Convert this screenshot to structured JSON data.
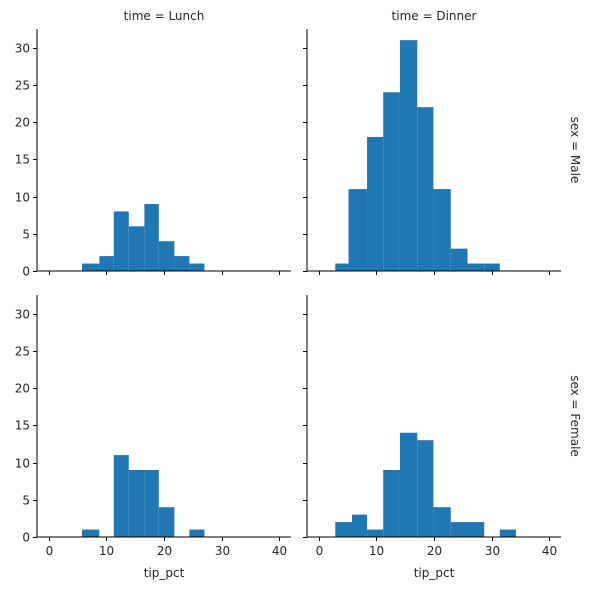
{
  "chart_data": {
    "type": "bar",
    "layout": "facet-grid 2x2 histograms",
    "bar_color": "#1f77b4",
    "xlim": [
      -2,
      42
    ],
    "ylim": [
      0,
      32.5
    ],
    "x_ticks": [
      0,
      10,
      20,
      30,
      40
    ],
    "y_ticks": [
      0,
      5,
      10,
      15,
      20,
      25,
      30
    ],
    "xlabel": "tip_pct",
    "ylabel": "",
    "shared_axes": true,
    "grid": false,
    "legend": "none",
    "column_titles": [
      "time = Lunch",
      "time = Dinner"
    ],
    "row_titles": [
      "sex = Male",
      "sex = Female"
    ],
    "panels": [
      {
        "row": 0,
        "col": 0,
        "bins": [
          [
            5.8,
            8.8,
            1
          ],
          [
            8.8,
            11.3,
            2
          ],
          [
            11.3,
            13.9,
            8
          ],
          [
            13.9,
            16.6,
            6
          ],
          [
            16.6,
            19.1,
            9
          ],
          [
            19.1,
            21.8,
            4
          ],
          [
            21.8,
            24.4,
            2
          ],
          [
            24.4,
            27.0,
            1
          ]
        ]
      },
      {
        "row": 0,
        "col": 1,
        "bins": [
          [
            2.9,
            5.2,
            1
          ],
          [
            5.2,
            8.4,
            11
          ],
          [
            8.4,
            11.2,
            18
          ],
          [
            11.2,
            14.1,
            24
          ],
          [
            14.1,
            17.1,
            31
          ],
          [
            17.1,
            19.9,
            22
          ],
          [
            19.9,
            22.9,
            11
          ],
          [
            22.9,
            25.8,
            3
          ],
          [
            25.8,
            28.7,
            1
          ],
          [
            28.7,
            31.4,
            1
          ]
        ]
      },
      {
        "row": 1,
        "col": 0,
        "bins": [
          [
            5.8,
            8.8,
            1
          ],
          [
            11.3,
            13.9,
            11
          ],
          [
            13.9,
            16.6,
            9
          ],
          [
            16.6,
            19.1,
            9
          ],
          [
            19.1,
            21.8,
            4
          ],
          [
            24.4,
            27.0,
            1
          ]
        ]
      },
      {
        "row": 1,
        "col": 1,
        "bins": [
          [
            2.9,
            5.8,
            2
          ],
          [
            5.8,
            8.4,
            3
          ],
          [
            8.4,
            11.2,
            1
          ],
          [
            11.2,
            14.1,
            9
          ],
          [
            14.1,
            17.1,
            14
          ],
          [
            17.1,
            19.9,
            13
          ],
          [
            19.9,
            22.9,
            4
          ],
          [
            22.9,
            25.8,
            2
          ],
          [
            25.8,
            28.7,
            2
          ],
          [
            31.4,
            34.2,
            1
          ]
        ]
      }
    ]
  }
}
